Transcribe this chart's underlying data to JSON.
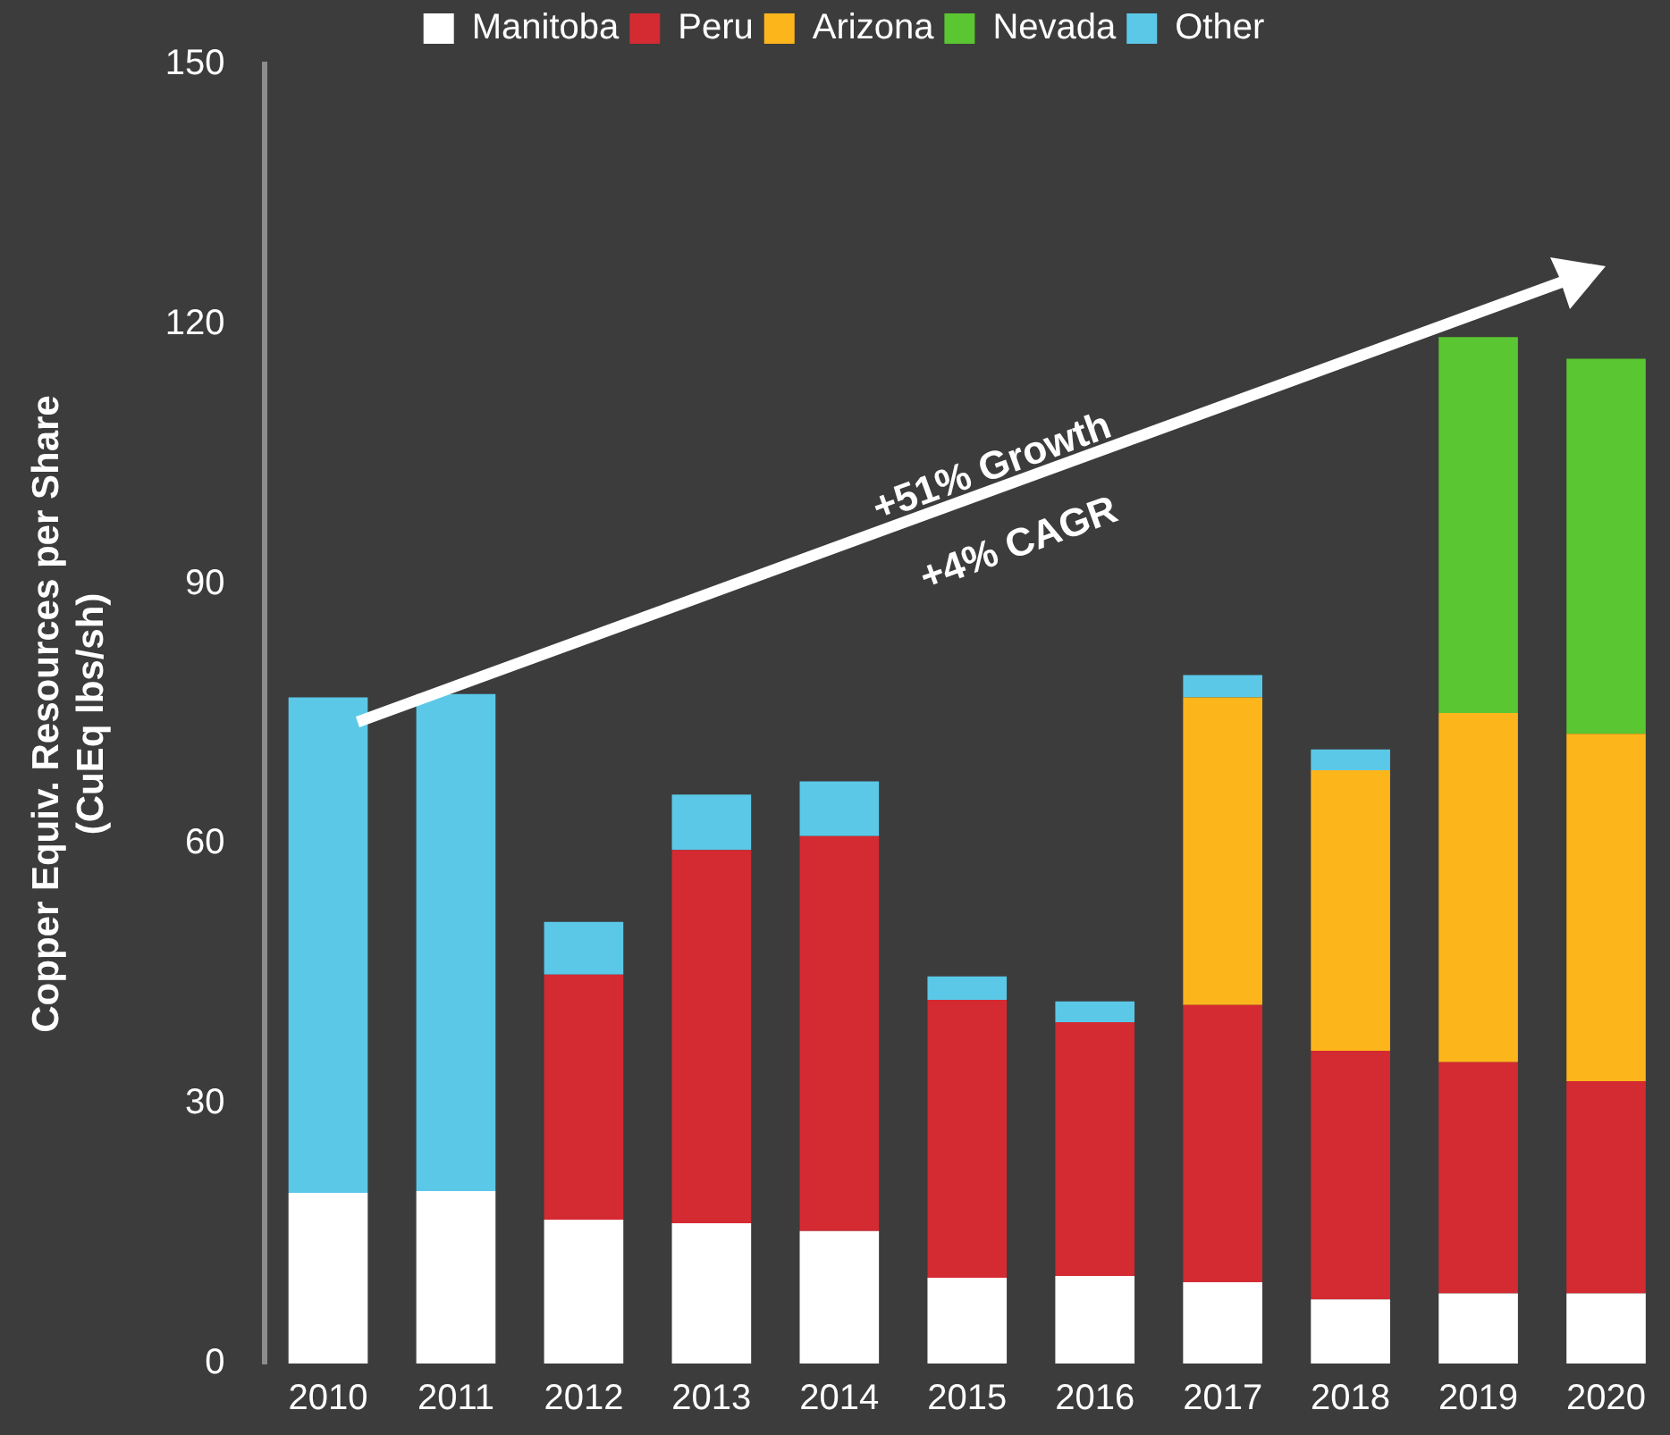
{
  "chart_data": {
    "type": "bar",
    "stacked": true,
    "ylabel": "Copper Equiv. Resources per Share\n(CuEq lbs/sh)",
    "categories": [
      "2010",
      "2011",
      "2012",
      "2013",
      "2014",
      "2015",
      "2016",
      "2017",
      "2018",
      "2019",
      "2020"
    ],
    "series": [
      {
        "name": "Manitoba",
        "color": "#ffffff",
        "values": [
          19.7,
          19.9,
          16.6,
          16.2,
          15.3,
          9.9,
          10.1,
          9.4,
          7.4,
          8.1,
          8.1
        ]
      },
      {
        "name": "Peru",
        "color": "#d42a32",
        "values": [
          null,
          null,
          28.3,
          43.1,
          45.6,
          32.1,
          29.3,
          32.0,
          28.7,
          26.7,
          24.5
        ]
      },
      {
        "name": "Arizona",
        "color": "#fdb51c",
        "values": [
          null,
          null,
          null,
          null,
          null,
          null,
          null,
          35.5,
          32.4,
          40.3,
          40.1
        ]
      },
      {
        "name": "Nevada",
        "color": "#5ac631",
        "values": [
          null,
          null,
          null,
          null,
          null,
          null,
          null,
          null,
          null,
          43.4,
          43.3
        ]
      },
      {
        "name": "Other",
        "color": "#5bc8e8",
        "values": [
          57.2,
          57.4,
          6.1,
          6.4,
          6.3,
          2.7,
          2.4,
          2.6,
          2.4,
          null,
          null
        ]
      }
    ],
    "ylim": [
      0,
      150
    ],
    "yticks": [
      0,
      30,
      60,
      90,
      120,
      150
    ],
    "grid": false,
    "legend": "top",
    "annotations": [
      "+51% Growth",
      "+4% CAGR"
    ]
  }
}
